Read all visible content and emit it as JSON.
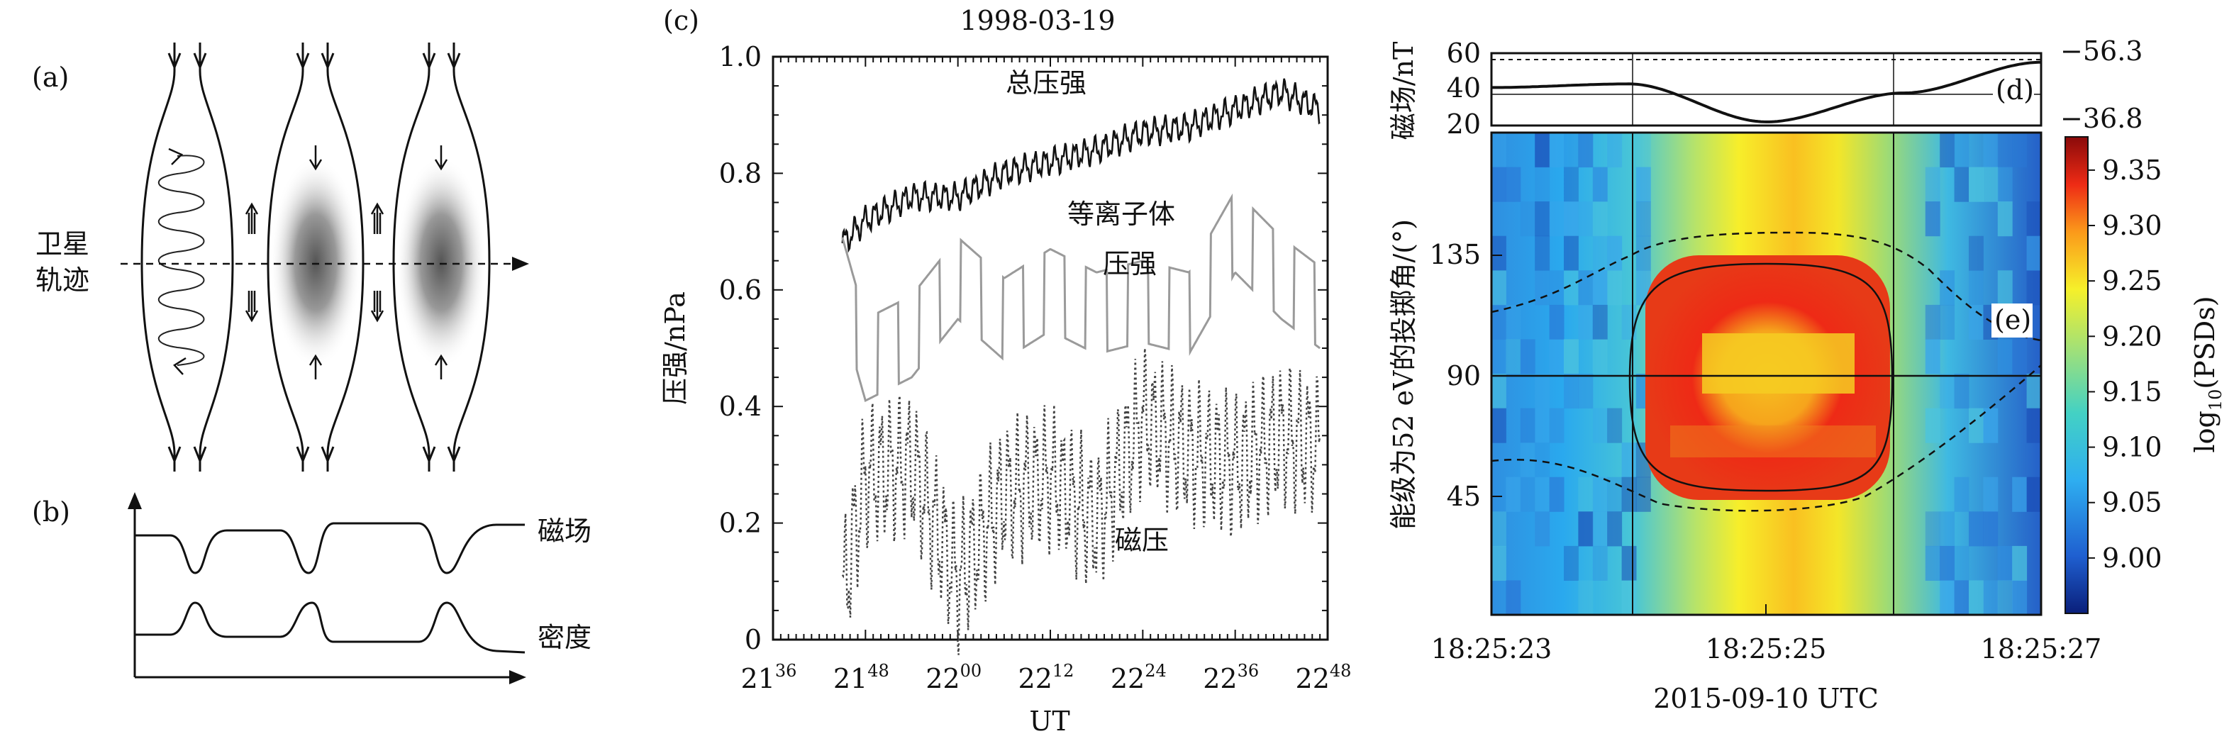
{
  "panel_a": {
    "label": "(a)",
    "track_label_line1": "卫星",
    "track_label_line2": "轨迹"
  },
  "panel_b": {
    "label": "(b)",
    "field_label": "磁场",
    "density_label": "密度"
  },
  "panel_c": {
    "label": "(c)",
    "top_axis_label": "1998-03-19",
    "ylabel": "压强/nPa",
    "xlabel": "UT",
    "annotations": {
      "total": "总压强",
      "plasma_line1": "等离子体",
      "plasma_line2": "压强",
      "magnetic": "磁压"
    },
    "y_ticks": [
      "0",
      "0.2",
      "0.4",
      "0.6",
      "0.8",
      "1.0"
    ],
    "x_ticks": [
      {
        "h": "21",
        "m": "36"
      },
      {
        "h": "21",
        "m": "48"
      },
      {
        "h": "22",
        "m": "00"
      },
      {
        "h": "22",
        "m": "12"
      },
      {
        "h": "22",
        "m": "24"
      },
      {
        "h": "22",
        "m": "36"
      },
      {
        "h": "22",
        "m": "48"
      }
    ]
  },
  "panel_d": {
    "label": "(d)",
    "ylabel": "磁场/nT",
    "y_ticks": [
      "20",
      "40",
      "60"
    ],
    "right_ticks": [
      "−56.3",
      "−36.8"
    ]
  },
  "panel_e": {
    "label": "(e)",
    "ylabel": "能级为52 eV的投掷角/(°)",
    "y_ticks": [
      "45",
      "90",
      "135"
    ],
    "x_ticks": [
      "18:25:23",
      "18:25:25",
      "18:25:27"
    ],
    "xlabel": "2015-09-10 UTC",
    "colorbar_label_prefix": "log",
    "colorbar_label_sub": "10",
    "colorbar_label_suffix": "(PSDs)",
    "colorbar_ticks": [
      "9.00",
      "9.05",
      "9.10",
      "9.15",
      "9.20",
      "9.25",
      "9.30",
      "9.35"
    ]
  },
  "chart_data": [
    {
      "type": "line",
      "panel": "(c)",
      "title": "1998-03-19",
      "xlabel": "UT",
      "ylabel": "压强/nPa",
      "x_range": [
        "21:36",
        "22:48"
      ],
      "ylim": [
        0,
        1.0
      ],
      "x": [
        "21:45",
        "21:48",
        "21:54",
        "22:00",
        "22:06",
        "22:12",
        "22:18",
        "22:24",
        "22:30",
        "22:36",
        "22:42",
        "22:47"
      ],
      "series": [
        {
          "name": "总压强",
          "values": [
            0.68,
            0.72,
            0.76,
            0.76,
            0.8,
            0.82,
            0.84,
            0.87,
            0.88,
            0.91,
            0.94,
            0.91
          ]
        },
        {
          "name": "等离子体压强",
          "values": [
            0.62,
            0.48,
            0.52,
            0.62,
            0.55,
            0.6,
            0.56,
            0.58,
            0.56,
            0.7,
            0.62,
            0.57
          ]
        },
        {
          "name": "磁压",
          "values": [
            0.07,
            0.28,
            0.3,
            0.1,
            0.25,
            0.28,
            0.2,
            0.38,
            0.32,
            0.3,
            0.35,
            0.33
          ]
        }
      ]
    },
    {
      "type": "line",
      "panel": "(d)",
      "ylabel": "磁场/nT",
      "ylim": [
        20,
        60
      ],
      "x": [
        "18:25:23",
        "18:25:24",
        "18:25:25",
        "18:25:26",
        "18:25:27"
      ],
      "series": [
        {
          "values": [
            41,
            43,
            22,
            38,
            55
          ]
        }
      ]
    },
    {
      "type": "heatmap",
      "panel": "(e)",
      "xlabel": "2015-09-10 UTC",
      "ylabel": "能级为52 eV的投掷角/(°)",
      "x_range": [
        "18:25:23",
        "18:25:27"
      ],
      "ylim": [
        0,
        180
      ],
      "colorbar_range": [
        8.95,
        9.38
      ],
      "colorbar_label": "log10(PSDs)",
      "peak_region": {
        "time": [
          "18:25:24",
          "18:25:26"
        ],
        "pitch_angle_deg": [
          50,
          130
        ],
        "value": 9.35
      }
    }
  ]
}
